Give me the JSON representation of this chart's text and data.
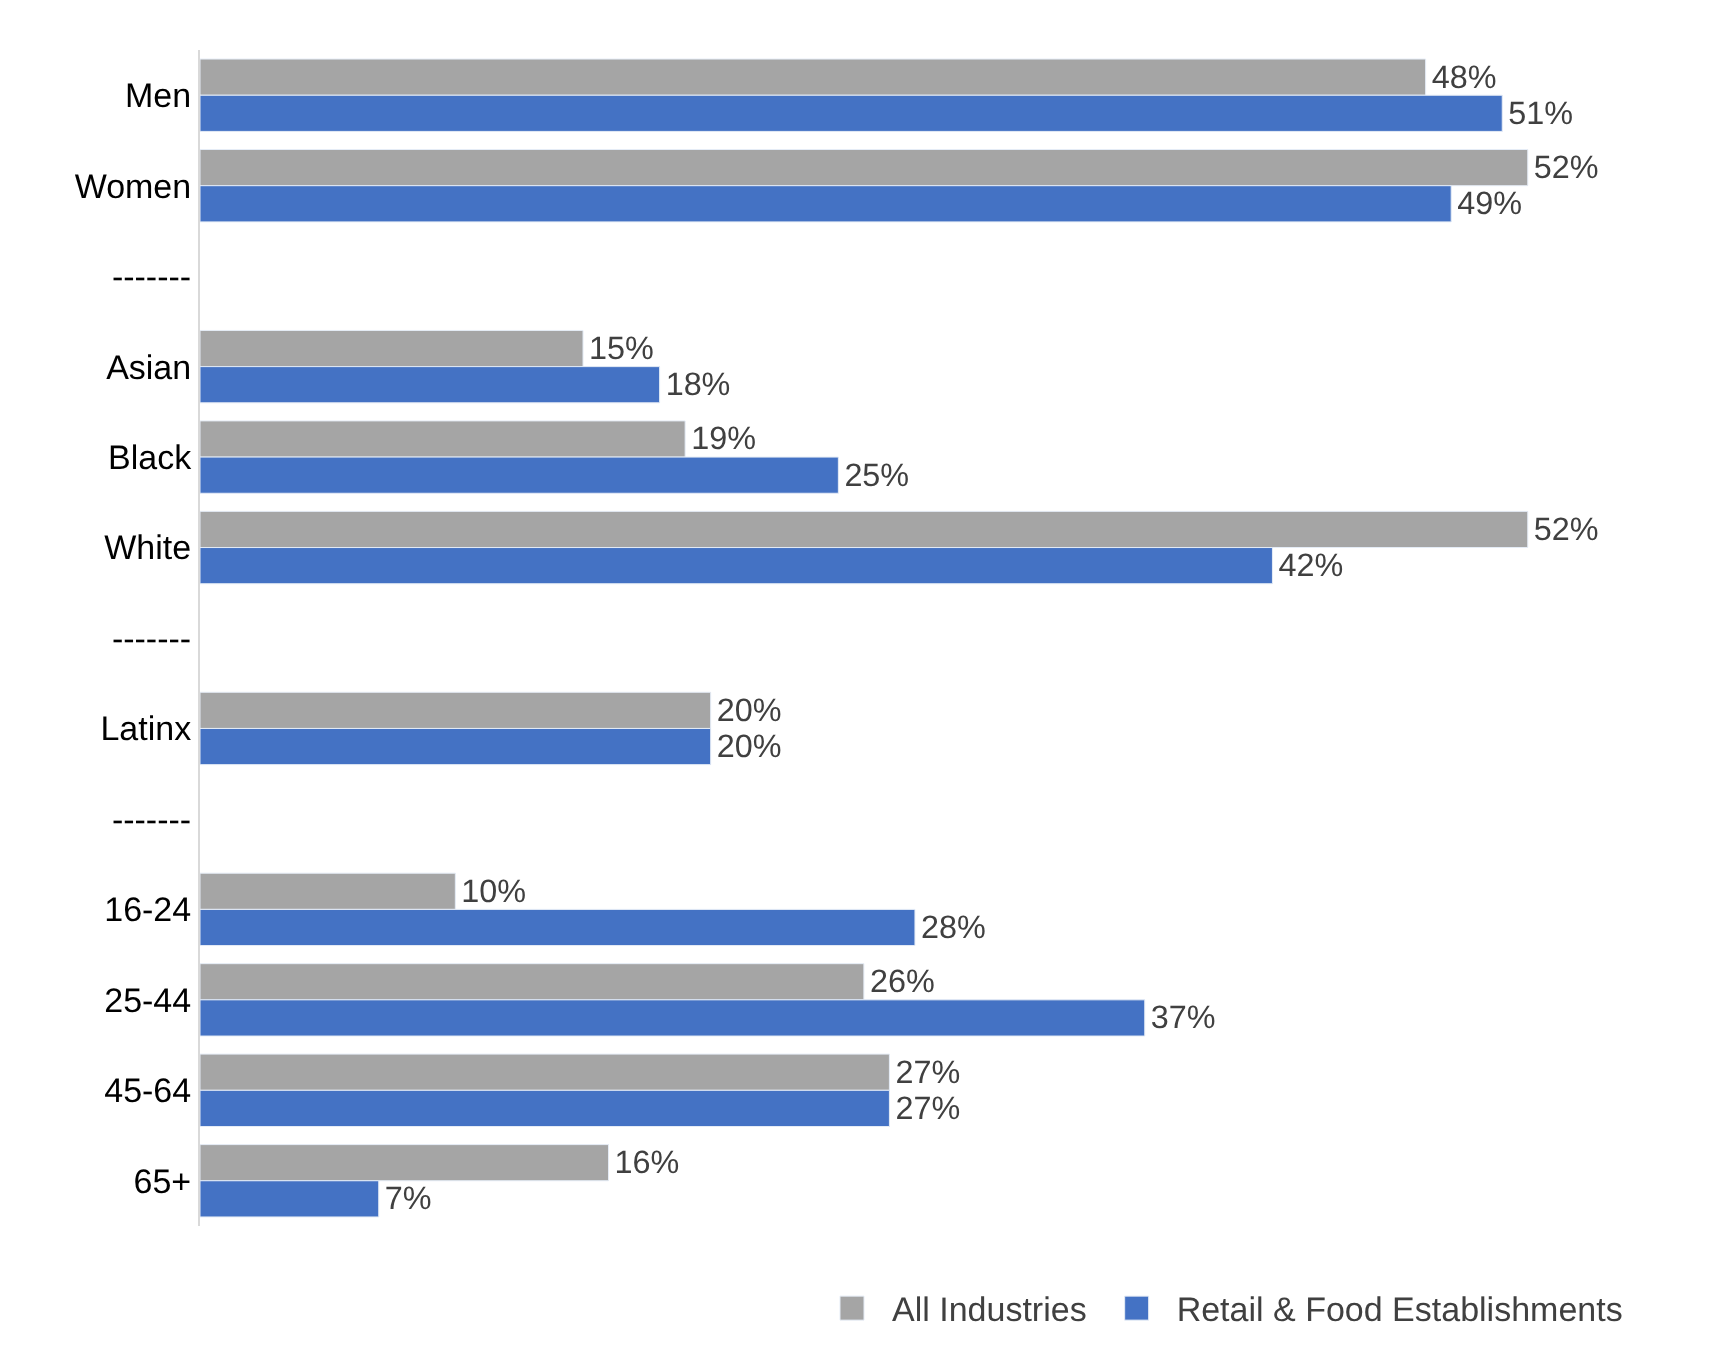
{
  "chart_data": {
    "type": "bar",
    "orientation": "horizontal",
    "categories": [
      "Men",
      "Women",
      "-------",
      "Asian",
      "Black",
      "White",
      "-------",
      "Latinx",
      "-------",
      "16-24",
      "25-44",
      "45-64",
      "65+"
    ],
    "series": [
      {
        "name": "All Industries",
        "color": "#a5a5a5",
        "values": [
          48,
          52,
          null,
          15,
          19,
          52,
          null,
          20,
          null,
          10,
          26,
          27,
          16
        ],
        "value_labels": [
          "48%",
          "52%",
          null,
          "15%",
          "19%",
          "52%",
          null,
          "20%",
          null,
          "10%",
          "26%",
          "27%",
          "16%"
        ]
      },
      {
        "name": "Retail & Food Establishments",
        "color": "#4472c4",
        "values": [
          51,
          49,
          null,
          18,
          25,
          42,
          null,
          20,
          null,
          28,
          37,
          27,
          7
        ],
        "value_labels": [
          "51%",
          "49%",
          null,
          "18%",
          "25%",
          "42%",
          null,
          "20%",
          null,
          "28%",
          "37%",
          "27%",
          "7%"
        ]
      }
    ],
    "legend": "bottom",
    "tick_labels": "y"
  }
}
